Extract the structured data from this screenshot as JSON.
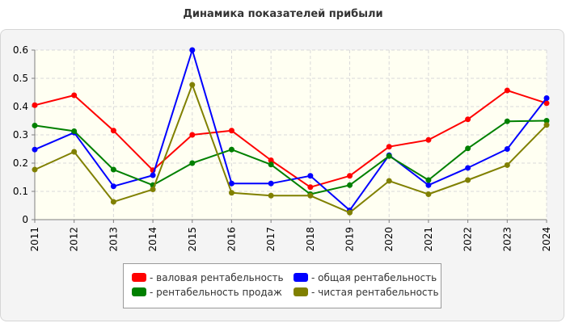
{
  "chart_data": {
    "type": "line",
    "title": "Динамика показателей прибыли",
    "xlabel": "",
    "ylabel": "",
    "categories": [
      "2011",
      "2012",
      "2013",
      "2014",
      "2015",
      "2016",
      "2017",
      "2018",
      "2019",
      "2020",
      "2021",
      "2022",
      "2023",
      "2024"
    ],
    "ylim": [
      0,
      0.6
    ],
    "yticks": [
      "0",
      "0.1",
      "0.2",
      "0.3",
      "0.4",
      "0.5",
      "0.6"
    ],
    "grid": true,
    "legend_position": "bottom",
    "series": [
      {
        "name": "- валовая рентабельность",
        "color": "#ff0000",
        "values": [
          0.405,
          0.44,
          0.315,
          0.175,
          0.3,
          0.315,
          0.21,
          0.115,
          0.155,
          0.258,
          0.282,
          0.355,
          0.457,
          0.412
        ]
      },
      {
        "name": "- общая рентабельность",
        "color": "#0000ff",
        "values": [
          0.248,
          0.308,
          0.118,
          0.157,
          0.6,
          0.128,
          0.128,
          0.155,
          0.033,
          0.228,
          0.122,
          0.183,
          0.25,
          0.43
        ]
      },
      {
        "name": "- рентабельность продаж",
        "color": "#008000",
        "values": [
          0.333,
          0.313,
          0.177,
          0.122,
          0.2,
          0.248,
          0.195,
          0.09,
          0.122,
          0.225,
          0.14,
          0.252,
          0.348,
          0.35
        ]
      },
      {
        "name": "- чистая рентабельность",
        "color": "#808000",
        "values": [
          0.177,
          0.24,
          0.063,
          0.107,
          0.477,
          0.095,
          0.085,
          0.085,
          0.025,
          0.137,
          0.09,
          0.14,
          0.193,
          0.335
        ]
      }
    ]
  }
}
